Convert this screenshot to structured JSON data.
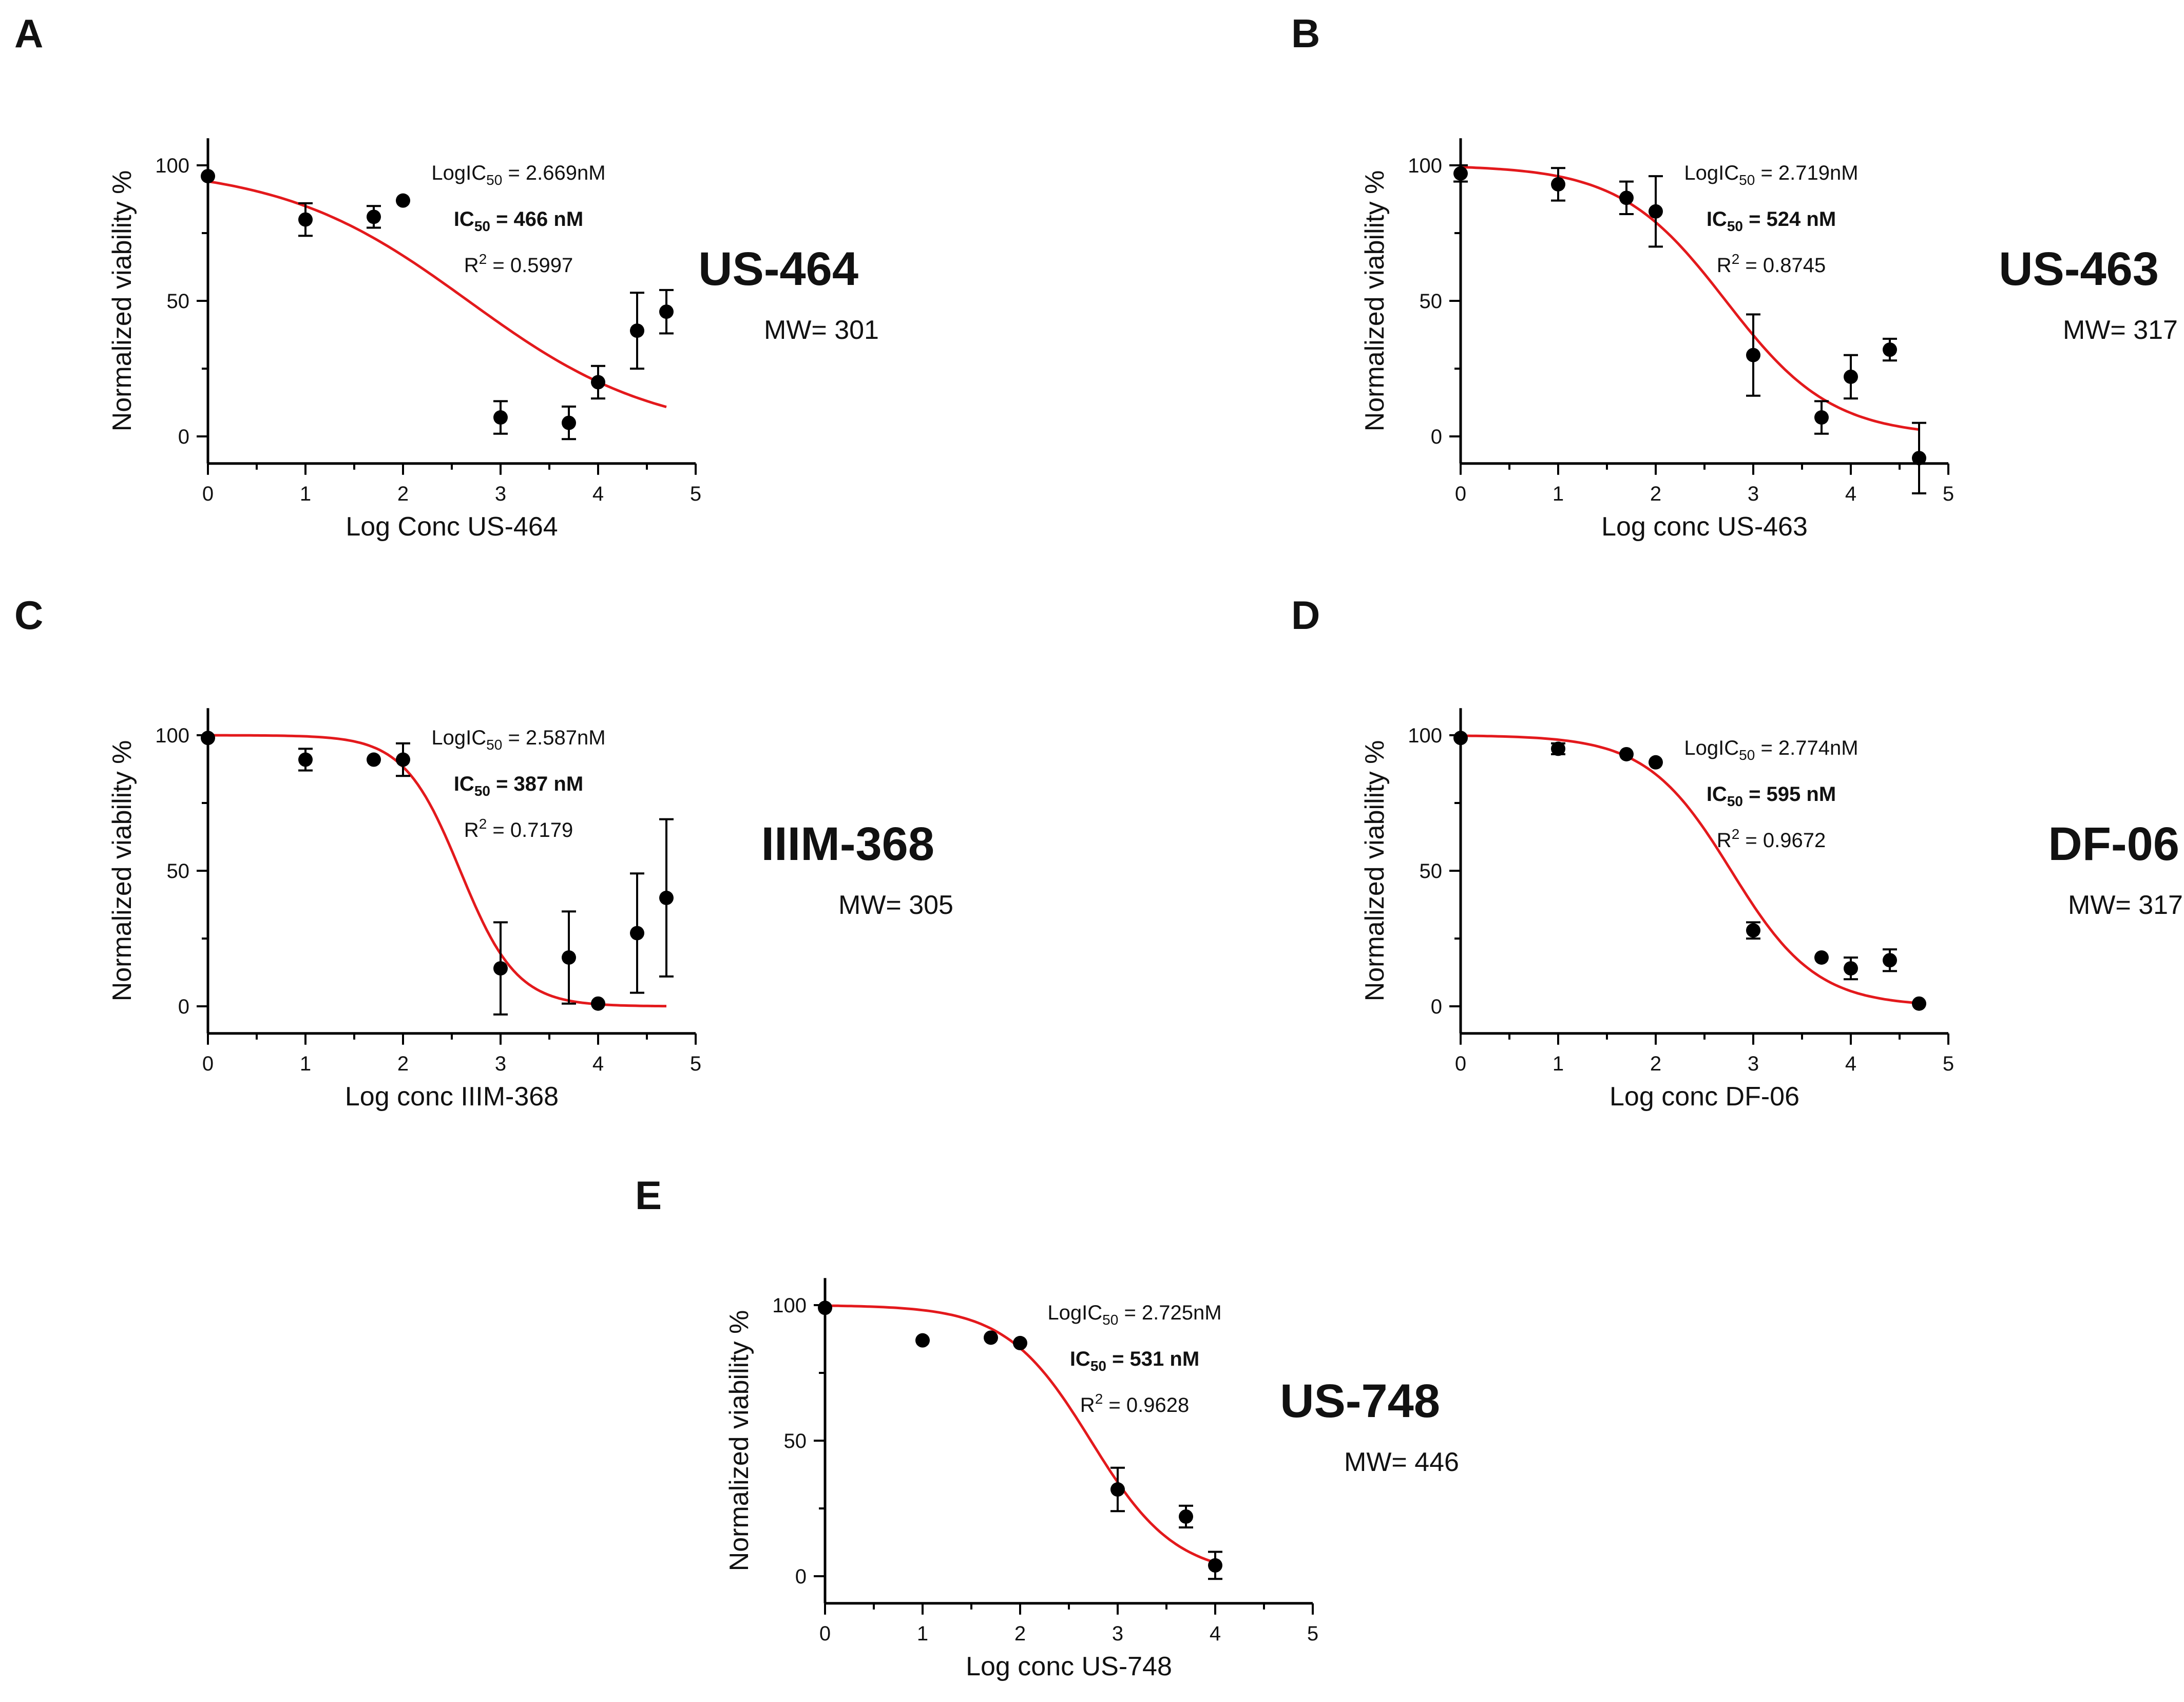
{
  "chart_data": [
    {
      "type": "scatter",
      "panel": "A",
      "compound": "US-464",
      "mw_label": "MW= 301",
      "xlabel": "Log Conc US-464",
      "ylabel": "Normalized viability %",
      "xlim": [
        0,
        5
      ],
      "ylim": [
        -10,
        110
      ],
      "x_ticks": [
        "0",
        "1",
        "2",
        "3",
        "4",
        "5"
      ],
      "y_ticks": [
        "0",
        "50",
        "100"
      ],
      "log_ic50_prefix": "LogIC",
      "log_ic50_sub": "50",
      "log_ic50_value": " = 2.669nM",
      "ic50_prefix": "IC",
      "ic50_sub": "50",
      "ic50_value": " = 466 nM",
      "r2_prefix": "R",
      "r2_sup": "2",
      "r2_value": " = 0.5997",
      "fit": {
        "top": 100,
        "bottom": 0,
        "log_ic50": 2.669,
        "hill": -0.45,
        "x_range": [
          0,
          4.7
        ]
      },
      "points": [
        {
          "x": 0,
          "y": 96,
          "err": 0
        },
        {
          "x": 1,
          "y": 80,
          "err": 6
        },
        {
          "x": 1.7,
          "y": 81,
          "err": 4
        },
        {
          "x": 2,
          "y": 87,
          "err": 0
        },
        {
          "x": 3,
          "y": 7,
          "err": 6
        },
        {
          "x": 3.7,
          "y": 5,
          "err": 6
        },
        {
          "x": 4,
          "y": 20,
          "err": 6
        },
        {
          "x": 4.4,
          "y": 39,
          "err": 14
        },
        {
          "x": 4.7,
          "y": 46,
          "err": 8
        }
      ]
    },
    {
      "type": "scatter",
      "panel": "B",
      "compound": "US-463",
      "mw_label": "MW= 317",
      "xlabel": "Log conc US-463",
      "ylabel": "Normalized viability %",
      "xlim": [
        0,
        5
      ],
      "ylim": [
        -10,
        110
      ],
      "x_ticks": [
        "0",
        "1",
        "2",
        "3",
        "4",
        "5"
      ],
      "y_ticks": [
        "0",
        "50",
        "100"
      ],
      "log_ic50_prefix": "LogIC",
      "log_ic50_sub": "50",
      "log_ic50_value": " = 2.719nM",
      "ic50_prefix": "IC",
      "ic50_sub": "50",
      "ic50_value": " = 524 nM",
      "r2_prefix": "R",
      "r2_sup": "2",
      "r2_value": " = 0.8745",
      "fit": {
        "top": 100,
        "bottom": 0,
        "log_ic50": 2.719,
        "hill": -0.8,
        "x_range": [
          0,
          4.7
        ]
      },
      "points": [
        {
          "x": 0,
          "y": 97,
          "err": 3
        },
        {
          "x": 1,
          "y": 93,
          "err": 6
        },
        {
          "x": 1.7,
          "y": 88,
          "err": 6
        },
        {
          "x": 2,
          "y": 83,
          "err": 13
        },
        {
          "x": 3,
          "y": 30,
          "err": 15
        },
        {
          "x": 3.7,
          "y": 7,
          "err": 6
        },
        {
          "x": 4,
          "y": 22,
          "err": 8
        },
        {
          "x": 4.4,
          "y": 32,
          "err": 4
        },
        {
          "x": 4.7,
          "y": -8,
          "err": 13
        }
      ]
    },
    {
      "type": "scatter",
      "panel": "C",
      "compound": "IIIM-368",
      "mw_label": "MW= 305",
      "xlabel": "Log conc IIIM-368",
      "ylabel": "Normalized viability %",
      "xlim": [
        0,
        5
      ],
      "ylim": [
        -10,
        110
      ],
      "x_ticks": [
        "0",
        "1",
        "2",
        "3",
        "4",
        "5"
      ],
      "y_ticks": [
        "0",
        "50",
        "100"
      ],
      "log_ic50_prefix": "LogIC",
      "log_ic50_sub": "50",
      "log_ic50_value": " = 2.587nM",
      "ic50_prefix": "IC",
      "ic50_sub": "50",
      "ic50_value": " = 387 nM",
      "r2_prefix": "R",
      "r2_sup": "2",
      "r2_value": " = 0.7179",
      "fit": {
        "top": 100,
        "bottom": 0,
        "log_ic50": 2.587,
        "hill": -1.5,
        "x_range": [
          0,
          4.7
        ]
      },
      "points": [
        {
          "x": 0,
          "y": 99,
          "err": 0
        },
        {
          "x": 1,
          "y": 91,
          "err": 4
        },
        {
          "x": 1.7,
          "y": 91,
          "err": 0
        },
        {
          "x": 2,
          "y": 91,
          "err": 6
        },
        {
          "x": 3,
          "y": 14,
          "err": 17
        },
        {
          "x": 3.7,
          "y": 18,
          "err": 17
        },
        {
          "x": 4,
          "y": 1,
          "err": 0
        },
        {
          "x": 4.4,
          "y": 27,
          "err": 22
        },
        {
          "x": 4.7,
          "y": 40,
          "err": 29
        }
      ]
    },
    {
      "type": "scatter",
      "panel": "D",
      "compound": "DF-06",
      "mw_label": "MW= 317",
      "xlabel": "Log conc DF-06",
      "ylabel": "Normalized viability %",
      "xlim": [
        0,
        5
      ],
      "ylim": [
        -10,
        110
      ],
      "x_ticks": [
        "0",
        "1",
        "2",
        "3",
        "4",
        "5"
      ],
      "y_ticks": [
        "0",
        "50",
        "100"
      ],
      "log_ic50_prefix": "LogIC",
      "log_ic50_sub": "50",
      "log_ic50_value": " = 2.774nM",
      "ic50_prefix": "IC",
      "ic50_sub": "50",
      "ic50_value": " = 595 nM",
      "r2_prefix": "R",
      "r2_sup": "2",
      "r2_value": " = 0.9672",
      "fit": {
        "top": 100,
        "bottom": 0,
        "log_ic50": 2.774,
        "hill": -1.0,
        "x_range": [
          0,
          4.7
        ]
      },
      "points": [
        {
          "x": 0,
          "y": 99,
          "err": 0
        },
        {
          "x": 1,
          "y": 95,
          "err": 2
        },
        {
          "x": 1.7,
          "y": 93,
          "err": 0
        },
        {
          "x": 2,
          "y": 90,
          "err": 0
        },
        {
          "x": 3,
          "y": 28,
          "err": 3
        },
        {
          "x": 3.7,
          "y": 18,
          "err": 0
        },
        {
          "x": 4,
          "y": 14,
          "err": 4
        },
        {
          "x": 4.4,
          "y": 17,
          "err": 4
        },
        {
          "x": 4.7,
          "y": 1,
          "err": 0
        }
      ]
    },
    {
      "type": "scatter",
      "panel": "E",
      "compound": "US-748",
      "mw_label": "MW= 446",
      "xlabel": "Log conc US-748",
      "ylabel": "Normalized viability %",
      "xlim": [
        0,
        5
      ],
      "ylim": [
        -10,
        110
      ],
      "x_ticks": [
        "0",
        "1",
        "2",
        "3",
        "4",
        "5"
      ],
      "y_ticks": [
        "0",
        "50",
        "100"
      ],
      "log_ic50_prefix": "LogIC",
      "log_ic50_sub": "50",
      "log_ic50_value": " = 2.725nM",
      "ic50_prefix": "IC",
      "ic50_sub": "50",
      "ic50_value": " = 531 nM",
      "r2_prefix": "R",
      "r2_sup": "2",
      "r2_value": " = 0.9628",
      "fit": {
        "top": 100,
        "bottom": 0,
        "log_ic50": 2.725,
        "hill": -1.0,
        "x_range": [
          0,
          4
        ]
      },
      "points": [
        {
          "x": 0,
          "y": 99,
          "err": 0
        },
        {
          "x": 1,
          "y": 87,
          "err": 0
        },
        {
          "x": 1.7,
          "y": 88,
          "err": 0
        },
        {
          "x": 2,
          "y": 86,
          "err": 0
        },
        {
          "x": 3,
          "y": 32,
          "err": 8
        },
        {
          "x": 3.7,
          "y": 22,
          "err": 4
        },
        {
          "x": 4,
          "y": 4,
          "err": 5
        }
      ]
    }
  ]
}
